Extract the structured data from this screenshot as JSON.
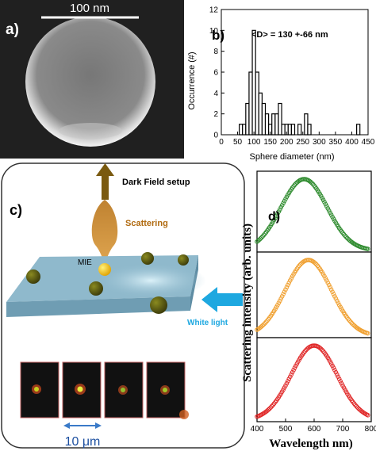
{
  "panels": {
    "a": {
      "label": "a)",
      "scale_label": "100 nm"
    },
    "b": {
      "label": "b)",
      "annotation": "<D> = 130 +-66 nm"
    },
    "c": {
      "label": "c)",
      "dark_field_label": "Dark Field setup",
      "scattering_label": "Scattering",
      "mie_label": "MIE",
      "white_light_label": "White light",
      "scale_label": "10 μm"
    },
    "d": {
      "label": "d)"
    }
  },
  "chart_data": [
    {
      "type": "bar",
      "xlabel": "Sphere diameter (nm)",
      "ylabel": "Occurrence (#)",
      "xlim": [
        0,
        450
      ],
      "ylim": [
        0,
        12
      ],
      "xticks": [
        0,
        50,
        100,
        150,
        200,
        250,
        300,
        350,
        400,
        450
      ],
      "yticks": [
        0,
        2,
        4,
        6,
        8,
        10,
        12
      ],
      "bin_width": 10,
      "bins": [
        {
          "x": 60,
          "y": 1
        },
        {
          "x": 70,
          "y": 1
        },
        {
          "x": 80,
          "y": 3
        },
        {
          "x": 90,
          "y": 6
        },
        {
          "x": 100,
          "y": 10
        },
        {
          "x": 110,
          "y": 6
        },
        {
          "x": 120,
          "y": 4
        },
        {
          "x": 130,
          "y": 3
        },
        {
          "x": 140,
          "y": 2
        },
        {
          "x": 150,
          "y": 1
        },
        {
          "x": 160,
          "y": 2
        },
        {
          "x": 170,
          "y": 2
        },
        {
          "x": 180,
          "y": 3
        },
        {
          "x": 190,
          "y": 1
        },
        {
          "x": 200,
          "y": 1
        },
        {
          "x": 210,
          "y": 1
        },
        {
          "x": 220,
          "y": 1
        },
        {
          "x": 240,
          "y": 1
        },
        {
          "x": 260,
          "y": 2
        },
        {
          "x": 270,
          "y": 1
        },
        {
          "x": 420,
          "y": 1
        }
      ]
    },
    {
      "type": "scatter",
      "xlabel": "Wavelength nm)",
      "ylabel": "Scattering intensity (arb. units)",
      "xlim": [
        400,
        800
      ],
      "xticks": [
        400,
        500,
        600,
        700,
        800
      ],
      "grid": false,
      "series": [
        {
          "color": "#2e8b2e",
          "peak_nm": 565,
          "fwhm_nm": 190
        },
        {
          "color": "#f0a030",
          "peak_nm": 580,
          "fwhm_nm": 190
        },
        {
          "color": "#e02828",
          "peak_nm": 600,
          "fwhm_nm": 190
        }
      ]
    }
  ],
  "colors": {
    "sem_background": "#1a1a1a",
    "slab": "#8fb9cc",
    "arrow_dark": "#7a5a10",
    "arrow_blue": "#1ea8e0",
    "scale_blue": "#3a7ac8"
  }
}
